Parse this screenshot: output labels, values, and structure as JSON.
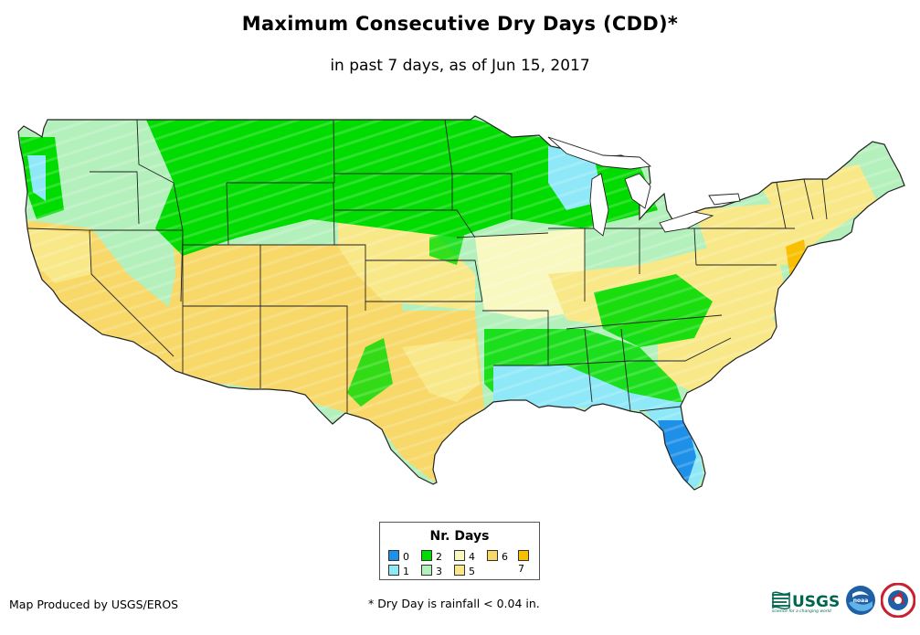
{
  "title": "Maximum Consecutive Dry Days (CDD)*",
  "subtitle": "in past 7 days, as of Jun 15, 2017",
  "legend": {
    "title": "Nr. Days",
    "items": [
      {
        "label": "0",
        "color": "#1e90e8"
      },
      {
        "label": "1",
        "color": "#8ee8f8"
      },
      {
        "label": "2",
        "color": "#00dc00"
      },
      {
        "label": "3",
        "color": "#b4f0bc"
      },
      {
        "label": "4",
        "color": "#f8f8c0"
      },
      {
        "label": "5",
        "color": "#f8e888"
      },
      {
        "label": "6",
        "color": "#f8d868"
      },
      {
        "label": "7",
        "color": "#f8c000"
      }
    ]
  },
  "footer": {
    "credit": "Map Produced by USGS/EROS",
    "note": "* Dry Day is rainfall < 0.04 in."
  },
  "logos": {
    "usgs": {
      "name": "USGS",
      "tagline": "science for a changing world"
    },
    "noaa": {
      "name": "noaa"
    },
    "nws": {
      "name": "National Weather Service"
    }
  },
  "map": {
    "region": "Contiguous United States",
    "ocean_color": "#ffffff",
    "border_color": "#222222"
  }
}
